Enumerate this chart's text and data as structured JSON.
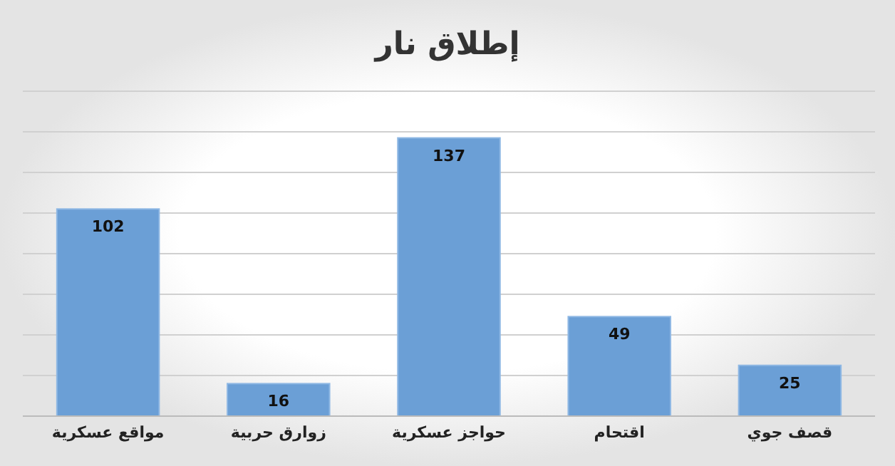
{
  "chart_data": {
    "type": "bar",
    "title": "إطلاق نار",
    "categories": [
      "مواقع عسكرية",
      "زوارق حربية",
      "حواجز عسكرية",
      "اقتحام",
      "قصف جوي"
    ],
    "values": [
      102,
      16,
      137,
      49,
      25
    ],
    "color": "#6b9fd6",
    "ylim": [
      0,
      160
    ],
    "yticks": [
      {
        "value": 0,
        "label": null
      },
      {
        "value": 20,
        "label": null
      },
      {
        "value": 40,
        "label": null
      },
      {
        "value": 60,
        "label": null
      },
      {
        "value": 80,
        "label": null
      },
      {
        "value": 100,
        "label": null
      },
      {
        "value": 120,
        "label": null
      },
      {
        "value": 140,
        "label": null
      },
      {
        "value": 160,
        "label": null
      }
    ],
    "tick_labels": "x",
    "grid": "y",
    "data_labels": true
  }
}
